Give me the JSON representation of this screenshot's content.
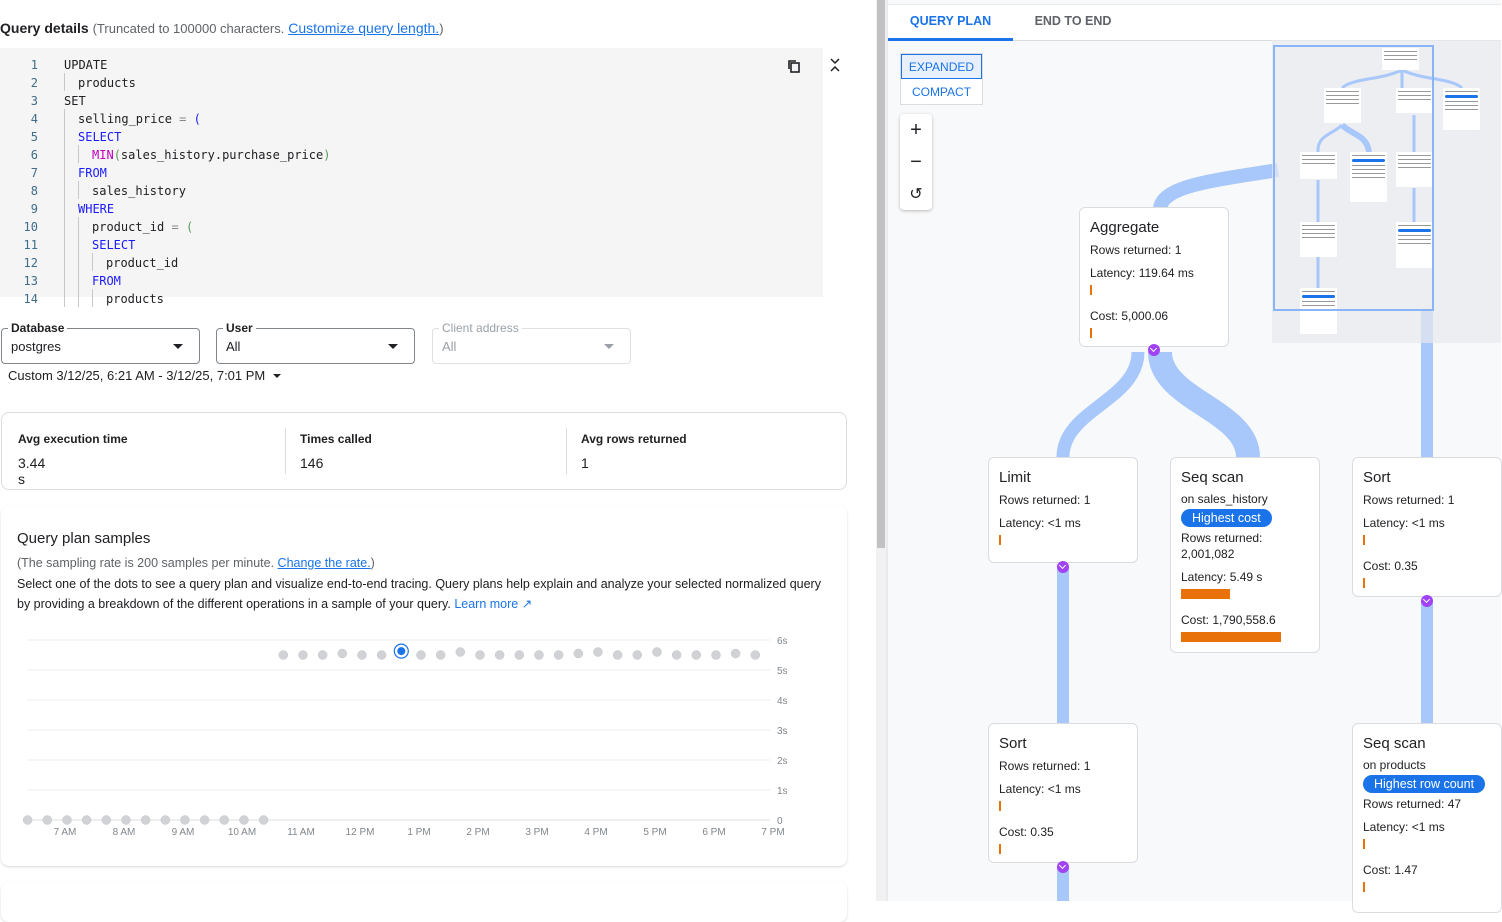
{
  "query_details": {
    "title": "Query details",
    "note_prefix": "(Truncated to 100000 characters.",
    "note_link": "Customize query length.",
    "note_suffix": ")",
    "copy_icon": "copy-icon",
    "collapse_icon": "collapse-icon",
    "lines": [
      {
        "n": "1",
        "t": "UPDATE"
      },
      {
        "n": "2",
        "t": "products"
      },
      {
        "n": "3",
        "t": "SET"
      },
      {
        "n": "4",
        "t": "selling_price = ("
      },
      {
        "n": "5",
        "t": "SELECT"
      },
      {
        "n": "6",
        "t": "MIN(sales_history.purchase_price)"
      },
      {
        "n": "7",
        "t": "FROM"
      },
      {
        "n": "8",
        "t": "sales_history"
      },
      {
        "n": "9",
        "t": "WHERE"
      },
      {
        "n": "10",
        "t": "product_id = ("
      },
      {
        "n": "11",
        "t": "SELECT"
      },
      {
        "n": "12",
        "t": "product_id"
      },
      {
        "n": "13",
        "t": "FROM"
      },
      {
        "n": "14",
        "t": "products"
      }
    ]
  },
  "filters": {
    "database": {
      "label": "Database",
      "value": "postgres"
    },
    "user": {
      "label": "User",
      "value": "All"
    },
    "client_address": {
      "label": "Client address",
      "value": "All"
    },
    "date_range": "Custom 3/12/25, 6:21 AM - 3/12/25, 7:01 PM"
  },
  "stats": [
    {
      "label": "Avg execution time",
      "value": "3.44 s"
    },
    {
      "label": "Times called",
      "value": "146"
    },
    {
      "label": "Avg rows returned",
      "value": "1"
    }
  ],
  "samples": {
    "title": "Query plan samples",
    "note_prefix": "(The sampling rate is 200 samples per minute.",
    "note_link": "Change the rate.",
    "note_suffix": ")",
    "description": "Select one of the dots to see a query plan and visualize end-to-end tracing. Query plans help explain and analyze your selected normalized query by providing a breakdown of the different operations in a sample of your query.",
    "learn_more": "Learn more"
  },
  "chart_data": {
    "type": "scatter",
    "x_tick_labels": [
      "7 AM",
      "8 AM",
      "9 AM",
      "10 AM",
      "11 AM",
      "12 PM",
      "1 PM",
      "2 PM",
      "3 PM",
      "4 PM",
      "5 PM",
      "6 PM",
      "7 PM"
    ],
    "y_tick_labels": [
      "0",
      "1s",
      "2s",
      "3s",
      "4s",
      "5s",
      "6s"
    ],
    "ylim": [
      0,
      6
    ],
    "y_unit": "s",
    "grid": true,
    "y_axis_side": "right",
    "colors": {
      "point": "#d0d2d5",
      "selected": "#1a73e8"
    },
    "selected_index": 19,
    "points": [
      {
        "x": "06:22",
        "y": 0
      },
      {
        "x": "06:42",
        "y": 0
      },
      {
        "x": "07:02",
        "y": 0
      },
      {
        "x": "07:22",
        "y": 0
      },
      {
        "x": "07:42",
        "y": 0
      },
      {
        "x": "08:02",
        "y": 0
      },
      {
        "x": "08:22",
        "y": 0
      },
      {
        "x": "08:42",
        "y": 0
      },
      {
        "x": "09:02",
        "y": 0
      },
      {
        "x": "09:22",
        "y": 0
      },
      {
        "x": "09:42",
        "y": 0
      },
      {
        "x": "10:02",
        "y": 0
      },
      {
        "x": "10:22",
        "y": 0
      },
      {
        "x": "10:42",
        "y": 5.5
      },
      {
        "x": "11:02",
        "y": 5.5
      },
      {
        "x": "11:22",
        "y": 5.5
      },
      {
        "x": "11:42",
        "y": 5.55
      },
      {
        "x": "12:02",
        "y": 5.5
      },
      {
        "x": "12:22",
        "y": 5.5
      },
      {
        "x": "12:42",
        "y": 5.63
      },
      {
        "x": "13:02",
        "y": 5.5
      },
      {
        "x": "13:22",
        "y": 5.5
      },
      {
        "x": "13:42",
        "y": 5.6
      },
      {
        "x": "14:02",
        "y": 5.5
      },
      {
        "x": "14:22",
        "y": 5.5
      },
      {
        "x": "14:42",
        "y": 5.5
      },
      {
        "x": "15:02",
        "y": 5.5
      },
      {
        "x": "15:22",
        "y": 5.5
      },
      {
        "x": "15:42",
        "y": 5.55
      },
      {
        "x": "16:02",
        "y": 5.6
      },
      {
        "x": "16:22",
        "y": 5.5
      },
      {
        "x": "16:42",
        "y": 5.5
      },
      {
        "x": "17:02",
        "y": 5.6
      },
      {
        "x": "17:22",
        "y": 5.5
      },
      {
        "x": "17:42",
        "y": 5.5
      },
      {
        "x": "18:02",
        "y": 5.5
      },
      {
        "x": "18:22",
        "y": 5.55
      },
      {
        "x": "18:42",
        "y": 5.5
      }
    ]
  },
  "plan": {
    "tabs": [
      "QUERY PLAN",
      "END TO END"
    ],
    "active_tab": 0,
    "view_modes": [
      "EXPANDED",
      "COMPACT"
    ],
    "selected_mode": 0,
    "zoom_icons": [
      "zoom-in-icon",
      "zoom-out-icon",
      "reset-icon"
    ],
    "colors": {
      "edge": "#a8c7fa",
      "bar": "#e8710a",
      "badge": "#1a73e8",
      "chevron": "#a142f4"
    },
    "nodes": {
      "aggregate": {
        "title": "Aggregate",
        "rows": "Rows returned: 1",
        "latency": "Latency: 119.64 ms",
        "latency_bar": 0,
        "cost": "Cost: 5,000.06",
        "cost_bar": 0
      },
      "limit": {
        "title": "Limit",
        "rows": "Rows returned: 1",
        "latency": "Latency: <1 ms",
        "latency_bar": 0
      },
      "seq_sales": {
        "title": "Seq scan",
        "subtitle": "on sales_history",
        "badge": "Highest cost",
        "rows": "Rows returned:",
        "rows_value": "2,001,082",
        "latency": "Latency: 5.49 s",
        "latency_bar": 0.49,
        "cost": "Cost: 1,790,558.6",
        "cost_bar": 1.0
      },
      "sort_right": {
        "title": "Sort",
        "rows": "Rows returned: 1",
        "latency": "Latency: <1 ms",
        "latency_bar": 0,
        "cost": "Cost: 0.35",
        "cost_bar": 0
      },
      "sort_left": {
        "title": "Sort",
        "rows": "Rows returned: 1",
        "latency": "Latency: <1 ms",
        "latency_bar": 0,
        "cost": "Cost: 0.35",
        "cost_bar": 0
      },
      "seq_products": {
        "title": "Seq scan",
        "subtitle": "on products",
        "badge": "Highest row count",
        "rows": "Rows returned: 47",
        "latency": "Latency: <1 ms",
        "latency_bar": 0,
        "cost": "Cost: 1.47",
        "cost_bar": 0
      }
    }
  }
}
